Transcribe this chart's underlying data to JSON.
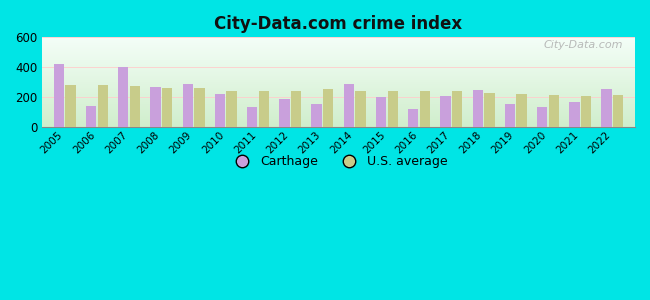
{
  "title": "City-Data.com crime index",
  "years": [
    2005,
    2006,
    2007,
    2008,
    2009,
    2010,
    2011,
    2012,
    2013,
    2014,
    2015,
    2016,
    2017,
    2018,
    2019,
    2020,
    2021,
    2022
  ],
  "carthage": [
    420,
    140,
    400,
    270,
    290,
    225,
    135,
    190,
    155,
    290,
    205,
    120,
    210,
    250,
    155,
    135,
    170,
    255
  ],
  "us_average": [
    280,
    280,
    275,
    265,
    260,
    245,
    240,
    240,
    255,
    240,
    245,
    245,
    240,
    230,
    220,
    215,
    210,
    215
  ],
  "carthage_color": "#c9a0dc",
  "us_avg_color": "#c8cc8a",
  "outer_bg": "#00e5e5",
  "ylim": [
    0,
    600
  ],
  "yticks": [
    0,
    200,
    400,
    600
  ],
  "bar_width": 0.32,
  "legend_carthage": "Carthage",
  "legend_us": "U.S. average",
  "watermark": "City-Data.com"
}
